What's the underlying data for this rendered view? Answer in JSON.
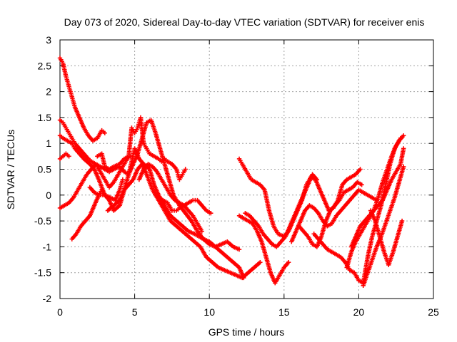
{
  "chart_data": {
    "type": "scatter",
    "title": "Day 073 of 2020, Sidereal Day-to-day VTEC variation (SDTVAR) for receiver enis",
    "xlabel": "GPS time / hours",
    "ylabel": "SDTVAR / TECUs",
    "xlim": [
      0,
      25
    ],
    "ylim": [
      -2,
      3
    ],
    "xticks": [
      "0",
      "5",
      "10",
      "15",
      "20",
      "25"
    ],
    "yticks": [
      "-2",
      "-1.5",
      "-1",
      "-0.5",
      "0",
      "0.5",
      "1",
      "1.5",
      "2",
      "2.5",
      "3"
    ],
    "grid": true,
    "marker": "+",
    "color": "#ff0000",
    "series": [
      {
        "x": [
          0.0,
          0.2,
          0.4,
          0.6,
          0.8,
          1.0,
          1.3,
          1.6,
          1.9,
          2.2,
          2.5,
          2.8,
          3.0
        ],
        "y": [
          2.65,
          2.55,
          2.3,
          2.1,
          1.9,
          1.7,
          1.5,
          1.3,
          1.15,
          1.05,
          1.1,
          1.25,
          1.2
        ]
      },
      {
        "x": [
          2.5,
          2.8,
          3.0,
          3.3,
          3.6,
          4.0,
          4.3,
          4.6,
          4.8,
          5.0,
          5.2,
          5.4,
          5.6,
          5.8,
          6.0,
          6.3,
          6.6,
          6.8,
          7.0,
          7.2,
          7.5,
          7.8,
          8.0,
          8.2,
          8.4
        ],
        "y": [
          0.75,
          0.8,
          0.55,
          0.5,
          0.55,
          0.6,
          0.7,
          0.75,
          1.3,
          1.2,
          1.3,
          1.5,
          1.0,
          0.9,
          0.8,
          0.75,
          0.7,
          0.65,
          0.7,
          0.65,
          0.6,
          0.5,
          0.3,
          0.4,
          0.5
        ]
      },
      {
        "x": [
          0.0,
          0.2,
          0.4,
          0.6,
          0.8,
          1.0,
          1.3,
          1.6,
          1.9,
          2.1,
          2.4,
          2.7,
          3.0,
          3.3,
          3.6,
          4.0,
          4.3,
          4.6,
          5.0,
          5.3,
          5.6,
          6.0,
          6.3,
          6.6,
          7.0,
          7.4,
          7.8,
          8.2,
          8.6,
          9.0,
          9.3,
          9.6,
          10.0,
          10.4,
          10.8,
          11.2,
          11.6,
          12.0,
          12.3
        ],
        "y": [
          1.45,
          1.4,
          1.3,
          1.2,
          1.1,
          1.0,
          0.9,
          0.8,
          0.7,
          0.65,
          0.6,
          0.55,
          0.5,
          0.45,
          0.5,
          0.55,
          0.45,
          0.4,
          0.9,
          0.7,
          0.6,
          0.5,
          0.2,
          0.0,
          -0.2,
          -0.4,
          -0.5,
          -0.6,
          -0.7,
          -0.75,
          -0.8,
          -0.85,
          -0.9,
          -1.0,
          -1.1,
          -1.2,
          -1.3,
          -1.4,
          -1.6
        ]
      },
      {
        "x": [
          0.0,
          0.2,
          0.5,
          0.8,
          1.0,
          1.3,
          1.6,
          2.0,
          2.3,
          2.6,
          3.0,
          3.3,
          3.6,
          4.0,
          4.3,
          4.6,
          4.9,
          5.2,
          5.5,
          5.8,
          6.2,
          6.6,
          7.0,
          7.4,
          7.8,
          8.2,
          8.6,
          9.0,
          9.4,
          9.8,
          10.2,
          10.6,
          11.0,
          11.4,
          11.8,
          12.2,
          12.6,
          13.0,
          13.4
        ],
        "y": [
          1.15,
          1.1,
          1.05,
          1.0,
          0.9,
          0.8,
          0.7,
          0.6,
          0.5,
          0.3,
          0.0,
          -0.1,
          -0.3,
          -0.2,
          0.1,
          0.2,
          0.3,
          0.5,
          0.6,
          0.4,
          0.1,
          -0.1,
          -0.3,
          -0.5,
          -0.6,
          -0.7,
          -0.8,
          -0.9,
          -1.0,
          -1.2,
          -1.3,
          -1.4,
          -1.45,
          -1.5,
          -1.55,
          -1.6,
          -1.5,
          -1.4,
          -1.3
        ]
      },
      {
        "x": [
          0.0,
          0.2,
          0.4,
          0.6
        ],
        "y": [
          0.7,
          0.75,
          0.8,
          0.75
        ]
      },
      {
        "x": [
          0.0,
          0.3,
          0.6,
          0.9,
          1.2,
          1.5,
          1.8,
          2.1,
          2.4,
          2.7,
          3.0,
          3.3,
          3.6,
          3.9,
          4.2,
          4.5,
          4.7
        ],
        "y": [
          -0.25,
          -0.2,
          -0.15,
          -0.05,
          0.1,
          0.25,
          0.4,
          0.5,
          0.6,
          0.45,
          0.3,
          0.15,
          0.25,
          0.4,
          0.55,
          0.7,
          0.75
        ]
      },
      {
        "x": [
          0.8,
          1.1,
          1.4,
          1.7,
          2.0,
          2.3,
          2.6,
          2.8,
          3.0
        ],
        "y": [
          -0.85,
          -0.75,
          -0.6,
          -0.5,
          -0.4,
          -0.2,
          0.0,
          0.1,
          0.0
        ]
      },
      {
        "x": [
          2.0,
          2.3,
          2.6,
          3.0,
          3.4,
          3.7,
          4.0,
          4.2
        ],
        "y": [
          0.15,
          0.05,
          0.0,
          0.0,
          -0.05,
          -0.1,
          0.1,
          0.3
        ]
      },
      {
        "x": [
          3.2,
          3.6,
          4.0,
          4.3,
          4.6,
          4.9,
          5.2,
          5.5,
          5.8,
          6.1,
          6.4,
          6.7,
          7.0,
          7.3,
          7.6,
          8.0,
          8.4,
          8.8,
          9.2,
          9.6,
          10.0,
          10.4,
          10.8,
          11.2,
          11.6,
          12.0
        ],
        "y": [
          -0.3,
          -0.2,
          -0.1,
          0.1,
          0.4,
          0.6,
          0.8,
          1.1,
          1.4,
          1.45,
          1.2,
          0.9,
          0.6,
          0.3,
          0.0,
          -0.2,
          -0.35,
          -0.5,
          -0.7,
          -0.85,
          -0.95,
          -1.0,
          -0.95,
          -0.9,
          -1.0,
          -1.05
        ]
      },
      {
        "x": [
          5.3,
          5.6,
          5.9,
          6.2,
          6.5,
          6.8,
          7.1,
          7.4,
          7.7,
          8.0,
          8.3,
          8.6,
          8.9,
          9.2,
          9.5
        ],
        "y": [
          0.3,
          0.5,
          0.6,
          0.55,
          0.45,
          0.3,
          0.15,
          0.0,
          -0.1,
          -0.15,
          -0.2,
          -0.3,
          -0.4,
          -0.55,
          -0.7
        ]
      },
      {
        "x": [
          6.6,
          6.9,
          7.2,
          7.5,
          7.8,
          8.0,
          8.3,
          8.6,
          8.9,
          9.2,
          9.5,
          9.8,
          10.1
        ],
        "y": [
          -0.05,
          -0.1,
          -0.15,
          -0.3,
          -0.3,
          -0.25,
          -0.2,
          -0.15,
          -0.1,
          -0.1,
          -0.2,
          -0.3,
          -0.35
        ]
      },
      {
        "x": [
          12.0,
          12.2,
          12.5,
          12.8,
          13.1,
          13.4,
          13.7,
          14.0,
          14.3,
          14.6,
          15.0,
          15.3,
          15.6,
          15.9,
          16.2,
          16.5,
          16.8,
          17.1,
          17.4,
          17.7,
          18.0,
          18.3,
          18.6,
          18.9,
          19.2,
          19.5,
          19.8,
          20.1
        ],
        "y": [
          0.7,
          0.6,
          0.45,
          0.3,
          0.25,
          0.2,
          0.1,
          -0.3,
          -0.6,
          -0.75,
          -0.8,
          -0.7,
          -0.5,
          -0.3,
          -0.1,
          0.2,
          0.35,
          0.3,
          0.1,
          -0.1,
          -0.3,
          -0.25,
          -0.1,
          0.2,
          0.3,
          0.35,
          0.4,
          0.5
        ]
      },
      {
        "x": [
          12.0,
          12.3,
          12.6,
          12.9,
          13.2,
          13.5,
          13.8,
          14.1,
          14.4,
          14.7,
          15.0,
          15.3
        ],
        "y": [
          -0.4,
          -0.45,
          -0.5,
          -0.55,
          -0.7,
          -0.9,
          -1.2,
          -1.5,
          -1.7,
          -1.55,
          -1.4,
          -1.3
        ]
      },
      {
        "x": [
          12.4,
          12.7,
          13.0,
          13.3,
          13.6,
          13.9,
          14.2,
          14.5,
          14.8,
          15.1,
          15.4,
          15.7,
          16.0,
          16.3,
          16.6,
          16.9,
          17.2
        ],
        "y": [
          -0.35,
          -0.4,
          -0.5,
          -0.6,
          -0.75,
          -0.85,
          -0.95,
          -1.0,
          -0.9,
          -0.8,
          -0.6,
          -0.4,
          -0.2,
          0.0,
          0.2,
          0.4,
          0.3
        ]
      },
      {
        "x": [
          15.5,
          15.8,
          16.1,
          16.4,
          16.7,
          17.0,
          17.3,
          17.6,
          17.9,
          18.2,
          18.5,
          18.8,
          19.1,
          19.4,
          19.7,
          20.0,
          20.3,
          20.6,
          20.9,
          21.2
        ],
        "y": [
          -0.9,
          -0.7,
          -0.5,
          -0.3,
          -0.2,
          -0.25,
          -0.35,
          -0.5,
          -0.6,
          -0.55,
          -0.4,
          -0.3,
          -0.2,
          -0.1,
          0.0,
          0.1,
          0.05,
          0.0,
          -0.05,
          -0.1
        ]
      },
      {
        "x": [
          16.0,
          16.3,
          16.6,
          16.9,
          17.2,
          17.5,
          17.8,
          18.1,
          18.4,
          18.7,
          19.0,
          19.3,
          19.6,
          19.9,
          20.2
        ],
        "y": [
          -0.6,
          -0.7,
          -0.8,
          -0.95,
          -1.0,
          -0.8,
          -0.5,
          -0.3,
          -0.2,
          -0.1,
          0.05,
          0.1,
          0.15,
          0.25,
          0.2
        ]
      },
      {
        "x": [
          17.0,
          17.3,
          17.6,
          17.9,
          18.2,
          18.5,
          18.8,
          19.1,
          19.4,
          19.7,
          20.0,
          20.3,
          20.6,
          20.9,
          21.2,
          21.5,
          21.8,
          22.1,
          22.4,
          22.7,
          23.0
        ],
        "y": [
          -0.75,
          -0.85,
          -0.95,
          -1.05,
          -1.1,
          -1.15,
          -1.2,
          -1.3,
          -1.45,
          -1.5,
          -1.65,
          -1.7,
          -1.2,
          -0.8,
          -0.5,
          -0.2,
          0.2,
          0.6,
          0.9,
          1.05,
          1.15
        ]
      },
      {
        "x": [
          19.2,
          19.5,
          19.8,
          20.1,
          20.4,
          20.7,
          21.0,
          21.3,
          21.6,
          21.9,
          22.2,
          22.5,
          22.8,
          23.0
        ],
        "y": [
          -1.4,
          -1.1,
          -0.9,
          -0.75,
          -0.6,
          -0.45,
          -0.3,
          -0.2,
          -0.1,
          0.1,
          0.3,
          0.45,
          0.6,
          0.9
        ]
      },
      {
        "x": [
          19.5,
          19.8,
          20.1,
          20.4,
          20.7,
          21.0,
          21.3,
          21.6,
          21.9,
          22.2,
          22.5,
          22.8
        ],
        "y": [
          -1.0,
          -0.8,
          -0.6,
          -0.5,
          -0.4,
          -0.3,
          -0.05,
          0.25,
          0.5,
          0.75,
          0.95,
          1.1
        ]
      },
      {
        "x": [
          20.3,
          20.6,
          20.9,
          21.2,
          21.5,
          21.8,
          22.1,
          22.4,
          22.7,
          23.0
        ],
        "y": [
          -1.75,
          -1.5,
          -1.25,
          -1.0,
          -0.8,
          -0.55,
          -0.3,
          -0.05,
          0.25,
          0.55
        ]
      },
      {
        "x": [
          20.8,
          21.1,
          21.4,
          21.7,
          22.0,
          22.3,
          22.6,
          22.9
        ],
        "y": [
          -0.3,
          -0.5,
          -0.8,
          -1.1,
          -1.35,
          -1.1,
          -0.8,
          -0.5
        ]
      }
    ]
  }
}
